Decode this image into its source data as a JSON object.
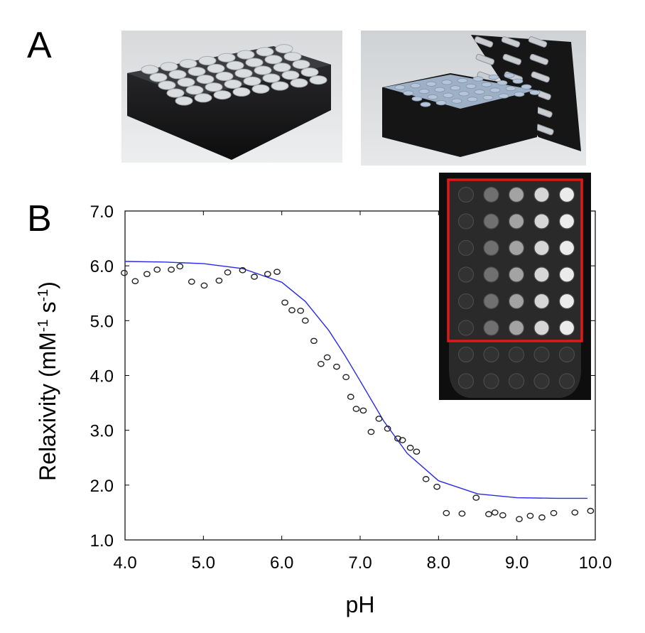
{
  "panels": {
    "a": "A",
    "b": "B"
  },
  "colors": {
    "fit_line": "#2a2ae6",
    "markers": "#222222",
    "inset_box": "#e01818",
    "inset_bg": "#0e0e0e"
  },
  "photos": [
    {
      "description": "Black tube rack filled with capped sample tubes, side view",
      "icon": "tube-rack-photo"
    },
    {
      "description": "Open tube rack with removed lid holding sample tubes",
      "icon": "tube-rack-open-photo"
    }
  ],
  "inset": {
    "rows": 6,
    "cols": 5,
    "brightness_by_col": [
      0.05,
      0.35,
      0.6,
      0.85,
      0.95
    ]
  },
  "chart_data": {
    "type": "scatter",
    "xlabel": "pH",
    "ylabel": "Relaxivity (mM-1 s-1)",
    "xlim": [
      4.0,
      10.0
    ],
    "ylim": [
      1.0,
      7.0
    ],
    "xticks": [
      "4.0",
      "5.0",
      "6.0",
      "7.0",
      "8.0",
      "9.0",
      "10.0"
    ],
    "yticks": [
      "1.0",
      "2.0",
      "3.0",
      "4.0",
      "5.0",
      "6.0",
      "7.0"
    ],
    "grid": false,
    "series": [
      {
        "kind": "points",
        "points": [
          [
            3.99,
            5.87
          ],
          [
            4.13,
            5.72
          ],
          [
            4.28,
            5.85
          ],
          [
            4.41,
            5.93
          ],
          [
            4.59,
            5.93
          ],
          [
            4.7,
            5.99
          ],
          [
            4.85,
            5.71
          ],
          [
            5.01,
            5.64
          ],
          [
            5.2,
            5.73
          ],
          [
            5.31,
            5.88
          ],
          [
            5.5,
            5.92
          ],
          [
            5.65,
            5.8
          ],
          [
            5.82,
            5.85
          ],
          [
            5.94,
            5.89
          ],
          [
            6.04,
            5.33
          ],
          [
            6.13,
            5.19
          ],
          [
            6.24,
            5.18
          ],
          [
            6.3,
            5.0
          ],
          [
            6.41,
            4.63
          ],
          [
            6.5,
            4.21
          ],
          [
            6.58,
            4.33
          ],
          [
            6.7,
            4.16
          ],
          [
            6.82,
            3.97
          ],
          [
            6.88,
            3.61
          ],
          [
            6.95,
            3.39
          ],
          [
            7.04,
            3.36
          ],
          [
            7.14,
            2.97
          ],
          [
            7.24,
            3.21
          ],
          [
            7.35,
            3.03
          ],
          [
            7.48,
            2.85
          ],
          [
            7.54,
            2.82
          ],
          [
            7.64,
            2.68
          ],
          [
            7.72,
            2.61
          ],
          [
            7.84,
            2.11
          ],
          [
            7.98,
            1.97
          ],
          [
            8.1,
            1.49
          ],
          [
            8.3,
            1.48
          ],
          [
            8.48,
            1.77
          ],
          [
            8.64,
            1.47
          ],
          [
            8.72,
            1.5
          ],
          [
            8.82,
            1.45
          ],
          [
            9.03,
            1.38
          ],
          [
            9.17,
            1.44
          ],
          [
            9.32,
            1.41
          ],
          [
            9.47,
            1.49
          ],
          [
            9.74,
            1.5
          ],
          [
            9.94,
            1.53
          ]
        ]
      },
      {
        "kind": "fit",
        "x": [
          4.0,
          4.5,
          5.0,
          5.5,
          6.0,
          6.3,
          6.6,
          6.8,
          7.0,
          7.3,
          7.6,
          8.0,
          8.5,
          9.0,
          9.5,
          9.9
        ],
        "y": [
          6.08,
          6.07,
          6.04,
          5.95,
          5.7,
          5.35,
          4.82,
          4.38,
          3.9,
          3.17,
          2.58,
          2.08,
          1.84,
          1.77,
          1.76,
          1.76
        ]
      }
    ]
  }
}
